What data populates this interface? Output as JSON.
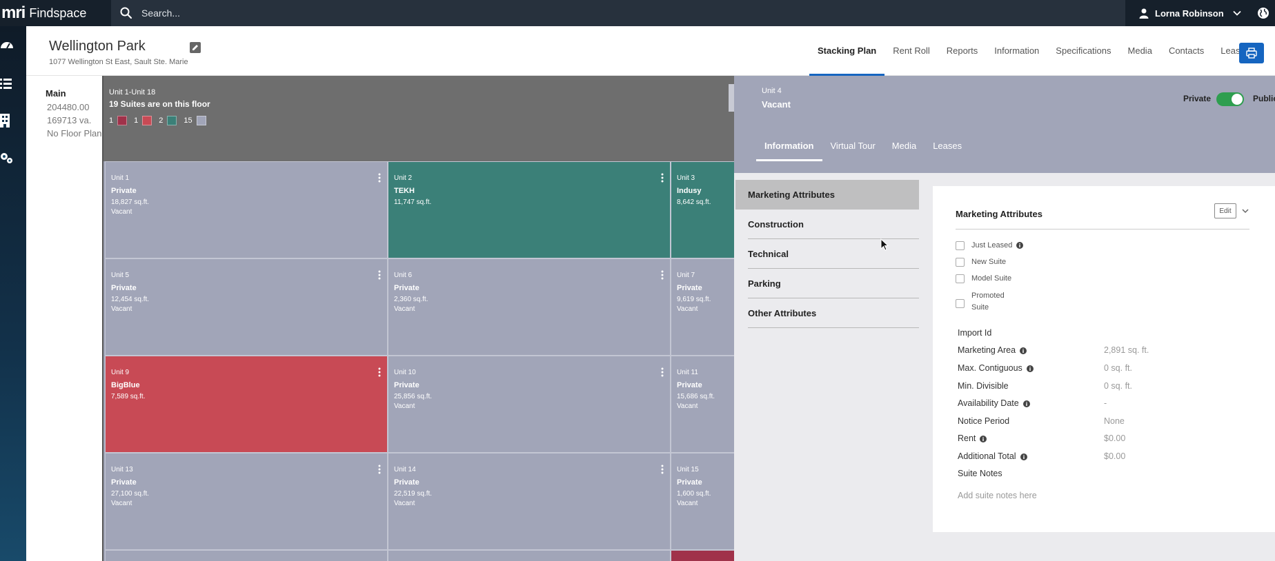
{
  "app": {
    "logo": "mri",
    "name": "Findspace"
  },
  "search": {
    "placeholder": "Search..."
  },
  "user": {
    "name": "Lorna Robinson"
  },
  "property": {
    "title": "Wellington Park",
    "address": "1077 Wellington St East, Sault Ste. Marie"
  },
  "nav": {
    "tabs": [
      "Stacking Plan",
      "Rent Roll",
      "Reports",
      "Information",
      "Specifications",
      "Media",
      "Contacts",
      "Leases"
    ],
    "active": "Stacking Plan"
  },
  "floor": {
    "name": "Main",
    "area": "204480.00",
    "vacant": "169713 va.",
    "floor_plan": "No Floor Plan"
  },
  "floor_header": {
    "range": "Unit 1-Unit 18",
    "summary": "19 Suites are on this floor",
    "legend": [
      {
        "count": "1",
        "color": "#a0324a"
      },
      {
        "count": "1",
        "color": "#c84a55"
      },
      {
        "count": "2",
        "color": "#3b8078"
      },
      {
        "count": "15",
        "color": "#a1a5b8"
      }
    ]
  },
  "units": [
    {
      "num": "Unit 1",
      "tenant": "Private",
      "area": "18,827 sq.ft.",
      "status": "Vacant",
      "color": "#a1a5b8"
    },
    {
      "num": "Unit 2",
      "tenant": "TEKH",
      "area": "11,747 sq.ft.",
      "status": "",
      "color": "#3b8078"
    },
    {
      "num": "Unit 3",
      "tenant": "Indusy",
      "area": "8,642 sq.ft.",
      "status": "",
      "color": "#3b8078"
    },
    {
      "num": "Unit 5",
      "tenant": "Private",
      "area": "12,454 sq.ft.",
      "status": "Vacant",
      "color": "#a1a5b8"
    },
    {
      "num": "Unit 6",
      "tenant": "Private",
      "area": "2,360 sq.ft.",
      "status": "Vacant",
      "color": "#a1a5b8"
    },
    {
      "num": "Unit 7",
      "tenant": "Private",
      "area": "9,619 sq.ft.",
      "status": "Vacant",
      "color": "#a1a5b8"
    },
    {
      "num": "Unit 9",
      "tenant": "BigBlue",
      "area": "7,589 sq.ft.",
      "status": "",
      "color": "#c84a55"
    },
    {
      "num": "Unit 10",
      "tenant": "Private",
      "area": "25,856 sq.ft.",
      "status": "Vacant",
      "color": "#a1a5b8"
    },
    {
      "num": "Unit 11",
      "tenant": "Private",
      "area": "15,686 sq.ft.",
      "status": "Vacant",
      "color": "#a1a5b8"
    },
    {
      "num": "Unit 13",
      "tenant": "Private",
      "area": "27,100 sq.ft.",
      "status": "Vacant",
      "color": "#a1a5b8"
    },
    {
      "num": "Unit 14",
      "tenant": "Private",
      "area": "22,519 sq.ft.",
      "status": "Vacant",
      "color": "#a1a5b8"
    },
    {
      "num": "Unit 15",
      "tenant": "Private",
      "area": "1,600 sq.ft.",
      "status": "Vacant",
      "color": "#a1a5b8"
    }
  ],
  "detail": {
    "unit": "Unit 4",
    "status": "Vacant",
    "private_label": "Private",
    "public_label": "Public",
    "tabs": [
      "Information",
      "Virtual Tour",
      "Media",
      "Leases"
    ],
    "menu": [
      "Marketing Attributes",
      "Construction",
      "Technical",
      "Parking",
      "Other Attributes"
    ],
    "card": {
      "title": "Marketing Attributes",
      "edit_label": "Edit",
      "checkboxes": [
        "Just Leased",
        "New Suite",
        "Model Suite",
        "Promoted Suite"
      ],
      "fields": [
        {
          "label": "Import Id",
          "value": ""
        },
        {
          "label": "Marketing Area",
          "value": "2,891 sq. ft."
        },
        {
          "label": "Max. Contiguous",
          "value": "0 sq. ft."
        },
        {
          "label": "Min. Divisible",
          "value": "0 sq. ft."
        },
        {
          "label": "Availability Date",
          "value": "-"
        },
        {
          "label": "Notice Period",
          "value": "None"
        },
        {
          "label": "Rent",
          "value": "$0.00"
        },
        {
          "label": "Additional Total",
          "value": "$0.00"
        },
        {
          "label": "Suite Notes",
          "value": ""
        }
      ],
      "notes_placeholder": "Add suite notes here"
    }
  },
  "colors": {
    "accent": "#1565c0",
    "toggle_on": "#2e9e4f",
    "topbar": "#16202b"
  }
}
